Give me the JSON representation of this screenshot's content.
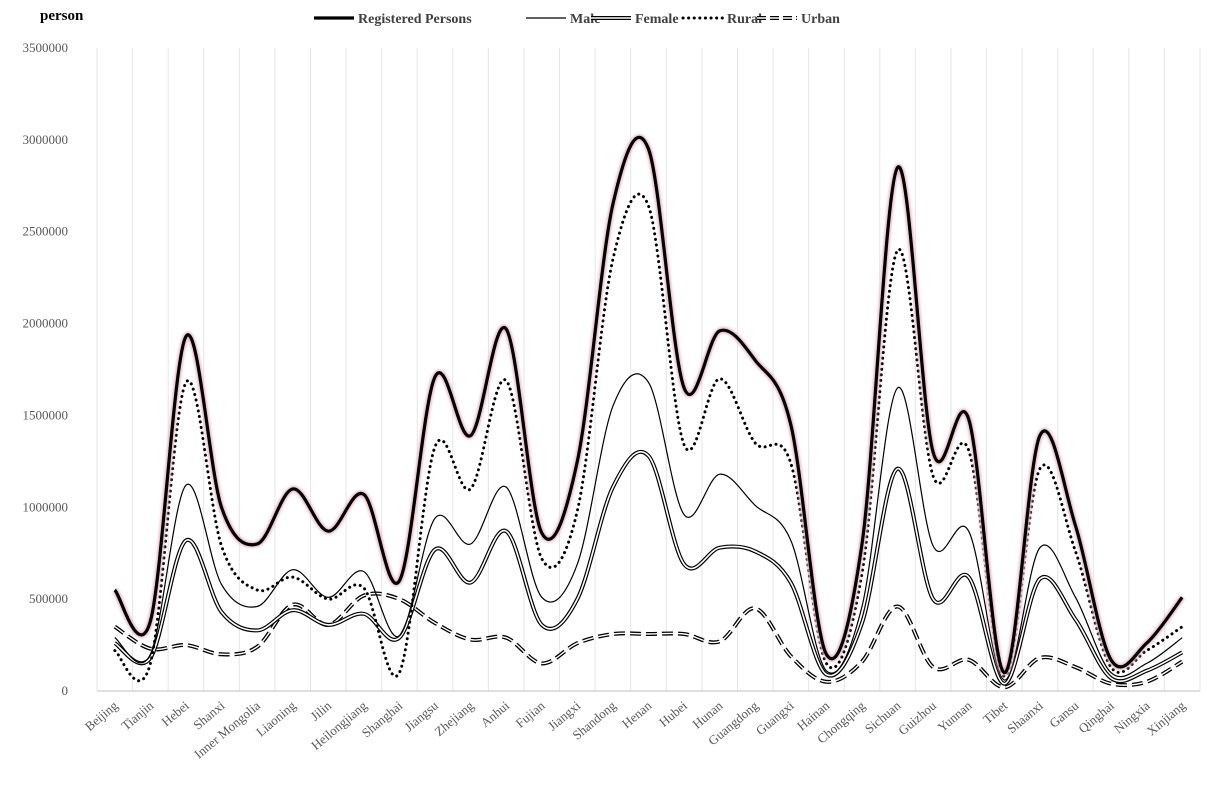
{
  "chart_data": {
    "type": "line",
    "y_unit": "person",
    "ylim": [
      0,
      3500000
    ],
    "yticks": [
      "0",
      "500000",
      "1000000",
      "1500000",
      "2000000",
      "2500000",
      "3000000",
      "3500000"
    ],
    "ytick_values": [
      0,
      500000,
      1000000,
      1500000,
      2000000,
      2500000,
      3000000,
      3500000
    ],
    "grid": "vertical",
    "legend_position": "top",
    "categories": [
      "Beijing",
      "Tianjin",
      "Hebei",
      "Shanxi",
      "Inner Mongolia",
      "Liaoning",
      "Jilin",
      "Heilongjiang",
      "Shanghai",
      "Jiangsu",
      "Zhejiang",
      "Anhui",
      "Fujian",
      "Jiangxi",
      "Shandong",
      "Henan",
      "Hubei",
      "Hunan",
      "Guangdong",
      "Guangxi",
      "Hainan",
      "Chongqing",
      "Sichuan",
      "Guizhou",
      "Yunnan",
      "Tibet",
      "Shaanxi",
      "Gansu",
      "Qinghai",
      "Ningxia",
      "Xinjiang"
    ],
    "series": [
      {
        "name": "Registered Persons",
        "style": "thick",
        "color": "#000000",
        "values": [
          550000,
          380000,
          1930000,
          1000000,
          800000,
          1100000,
          870000,
          1070000,
          600000,
          1710000,
          1390000,
          1970000,
          860000,
          1250000,
          2650000,
          2950000,
          1650000,
          1960000,
          1800000,
          1450000,
          200000,
          800000,
          2850000,
          1300000,
          1480000,
          100000,
          1390000,
          900000,
          170000,
          260000,
          510000
        ]
      },
      {
        "name": "Male",
        "style": "thin",
        "color": "#000000",
        "values": [
          290000,
          200000,
          1120000,
          580000,
          460000,
          660000,
          510000,
          650000,
          300000,
          940000,
          800000,
          1110000,
          510000,
          690000,
          1550000,
          1680000,
          960000,
          1180000,
          1010000,
          820000,
          110000,
          460000,
          1650000,
          790000,
          870000,
          60000,
          780000,
          510000,
          100000,
          150000,
          290000
        ]
      },
      {
        "name": "Female",
        "style": "double",
        "color": "#000000",
        "values": [
          260000,
          180000,
          820000,
          430000,
          330000,
          440000,
          360000,
          420000,
          290000,
          770000,
          590000,
          870000,
          360000,
          500000,
          1110000,
          1280000,
          690000,
          780000,
          760000,
          590000,
          90000,
          370000,
          1210000,
          500000,
          620000,
          40000,
          610000,
          390000,
          70000,
          110000,
          210000
        ]
      },
      {
        "name": "Rural",
        "style": "dotted",
        "color": "#000000",
        "values": [
          220000,
          150000,
          1680000,
          790000,
          550000,
          620000,
          500000,
          560000,
          100000,
          1330000,
          1100000,
          1690000,
          720000,
          980000,
          2350000,
          2640000,
          1340000,
          1700000,
          1350000,
          1240000,
          150000,
          640000,
          2400000,
          1170000,
          1310000,
          80000,
          1210000,
          760000,
          130000,
          220000,
          350000
        ]
      },
      {
        "name": "Urban",
        "style": "dashed-hollow",
        "color": "#000000",
        "values": [
          350000,
          230000,
          250000,
          200000,
          240000,
          470000,
          360000,
          520000,
          500000,
          370000,
          280000,
          290000,
          150000,
          260000,
          310000,
          310000,
          310000,
          270000,
          450000,
          190000,
          50000,
          160000,
          460000,
          130000,
          170000,
          20000,
          180000,
          130000,
          40000,
          50000,
          160000
        ]
      }
    ]
  }
}
